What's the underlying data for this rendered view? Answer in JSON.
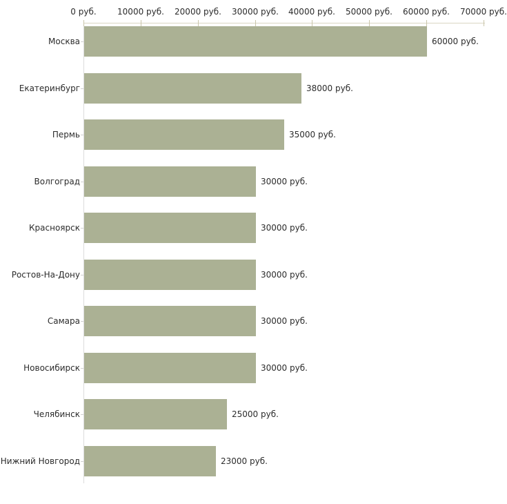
{
  "chart_data": {
    "type": "bar",
    "orientation": "horizontal",
    "title": "",
    "xlabel": "",
    "ylabel": "",
    "unit": "руб.",
    "categories": [
      "Москва",
      "Екатеринбург",
      "Пермь",
      "Волгоград",
      "Красноярск",
      "Ростов-На-Дону",
      "Самара",
      "Новосибирск",
      "Челябинск",
      "Нижний Новгород"
    ],
    "values": [
      60000,
      38000,
      35000,
      30000,
      30000,
      30000,
      30000,
      30000,
      25000,
      23000
    ],
    "value_labels": [
      "60000 руб.",
      "38000 руб.",
      "35000 руб.",
      "30000 руб.",
      "30000 руб.",
      "30000 руб.",
      "30000 руб.",
      "30000 руб.",
      "25000 руб.",
      "23000 руб."
    ],
    "x_axis": {
      "position": "top",
      "range": [
        0,
        70000
      ],
      "ticks": [
        0,
        10000,
        20000,
        30000,
        40000,
        50000,
        60000,
        70000
      ],
      "tick_labels": [
        "0 руб.",
        "10000 руб.",
        "20000 руб.",
        "30000 руб.",
        "40000 руб.",
        "50000 руб.",
        "60000 руб.",
        "70000 руб."
      ]
    },
    "grid": false,
    "legend": false,
    "colors": {
      "bar": "#abb194",
      "x_axis_line": "#d9d6c2",
      "x_tick": "#c9c5aa",
      "y_axis_line": "#dcdcdc",
      "category_tick": "#cfcfcf",
      "text": "#2b2b2b",
      "background": "#ffffff"
    }
  }
}
